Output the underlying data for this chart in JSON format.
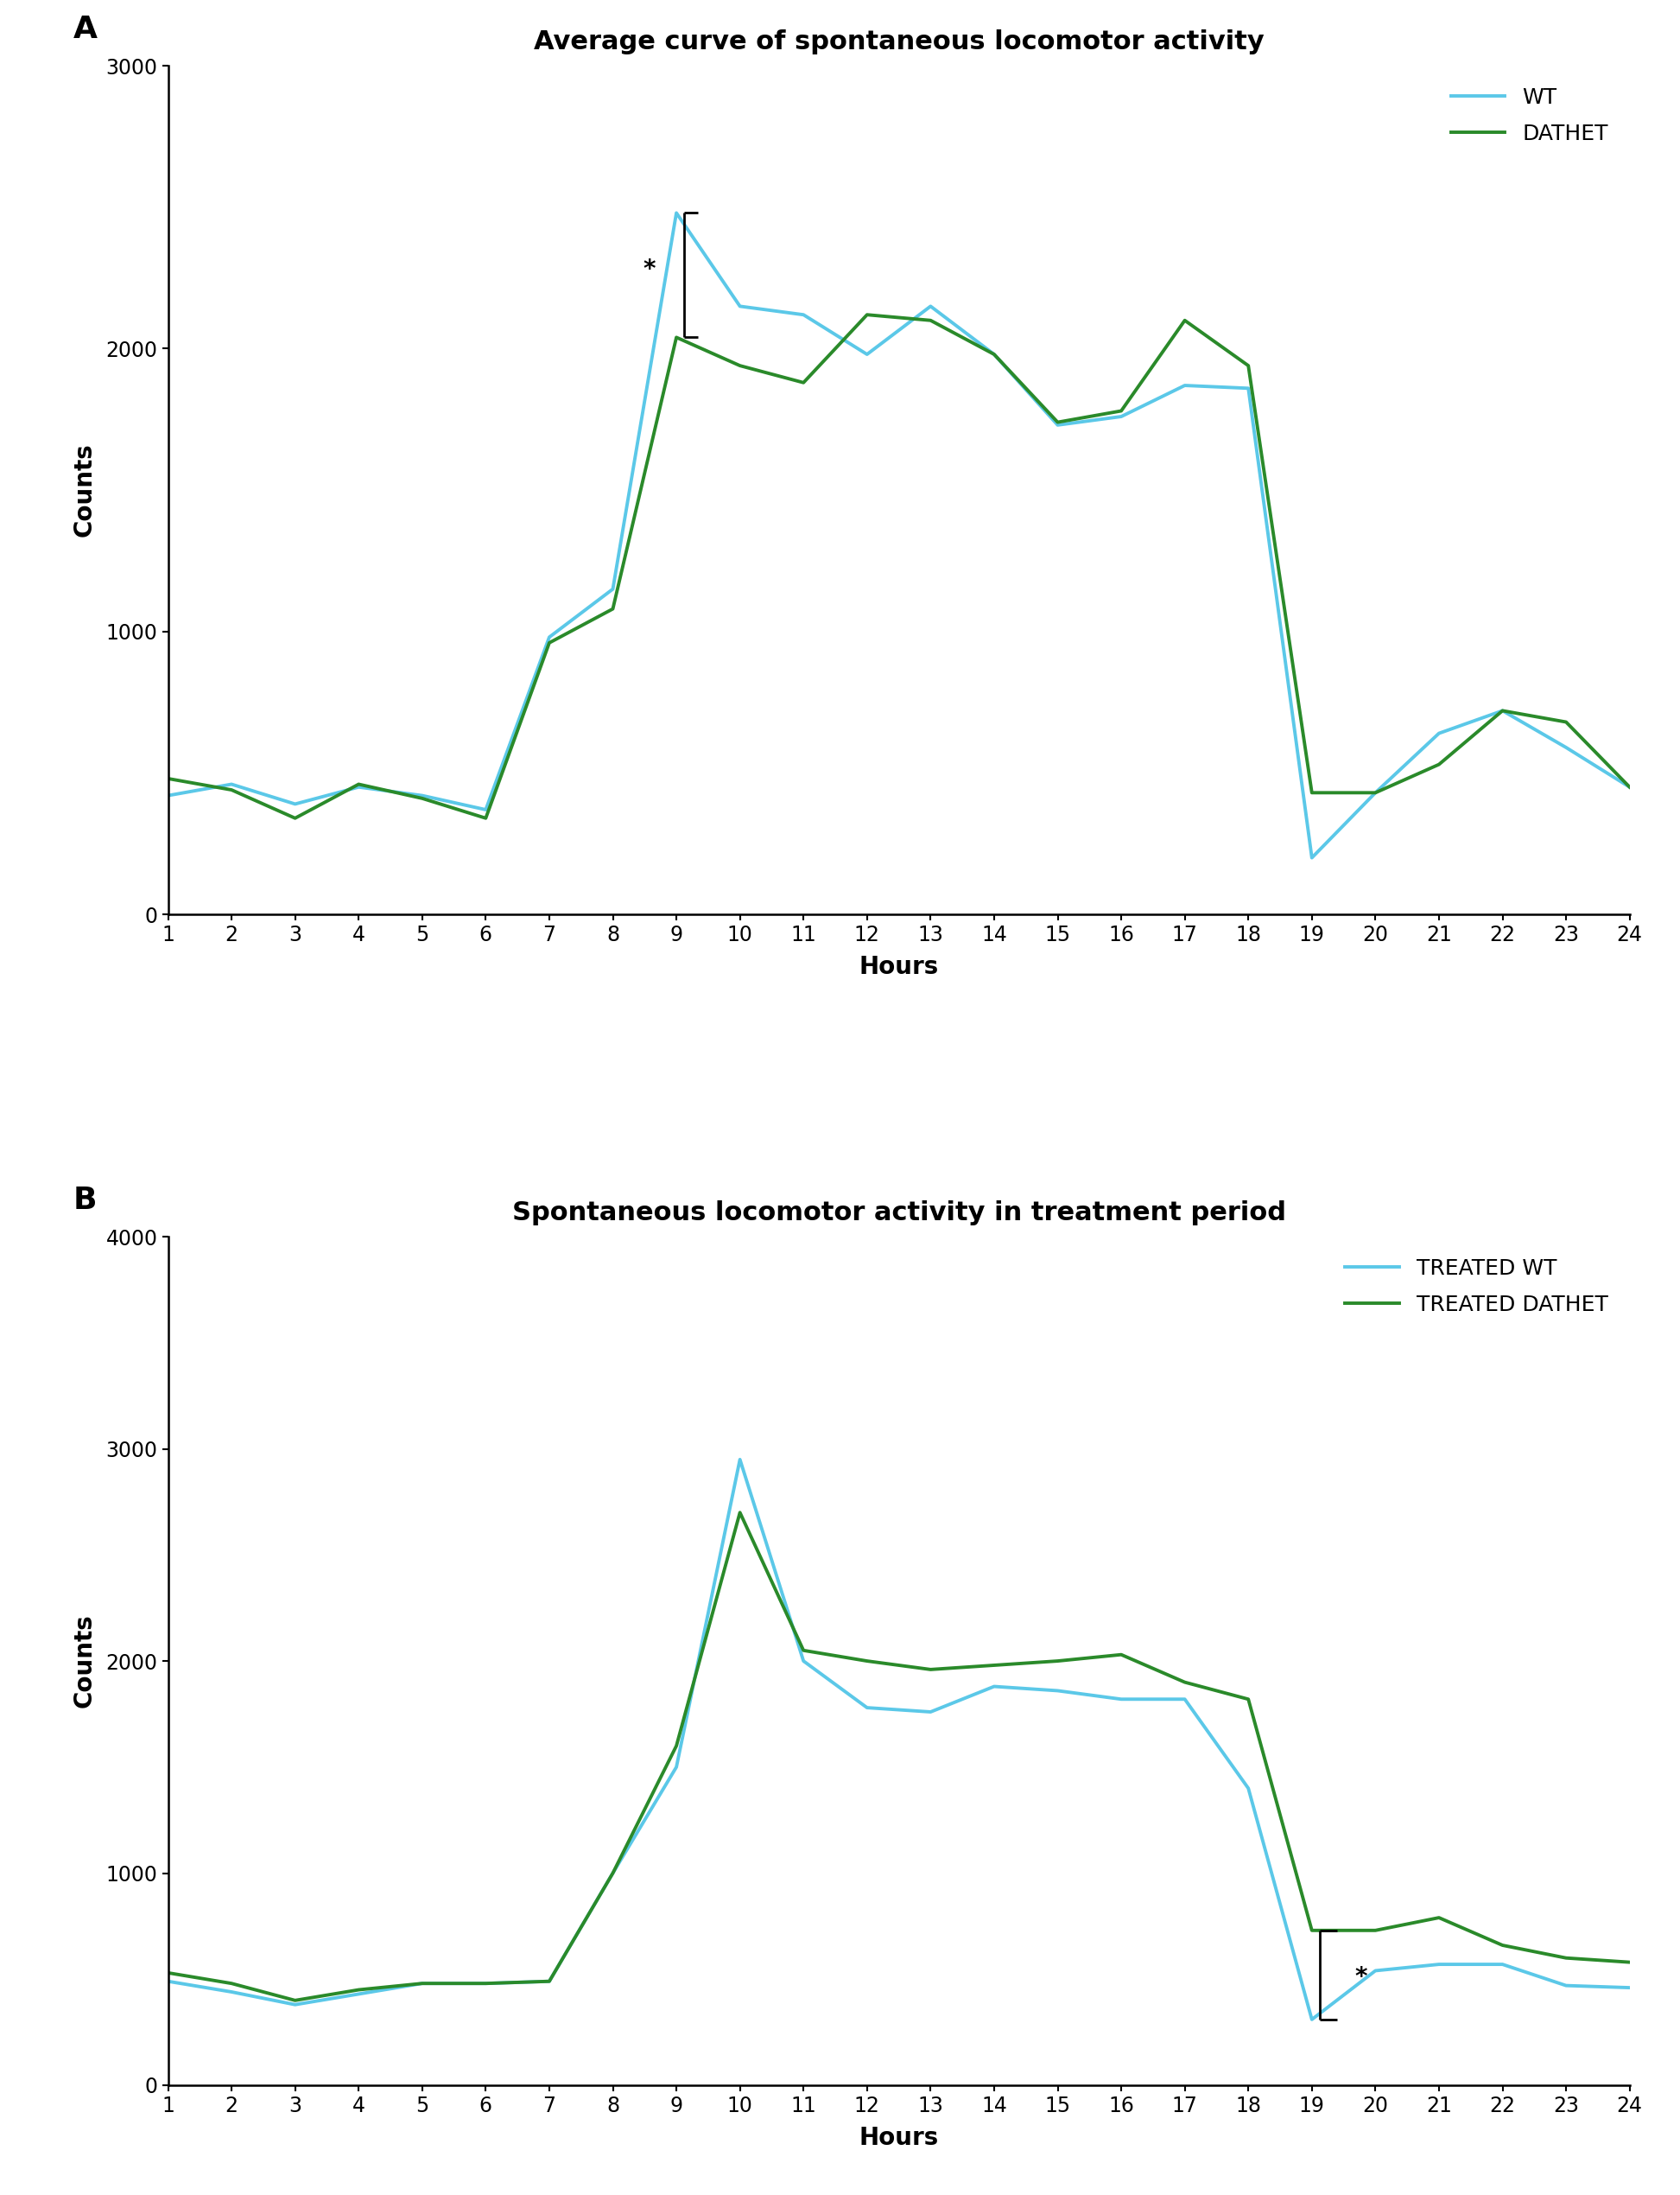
{
  "title_A": "Average curve of spontaneous locomotor activity",
  "title_B": "Spontaneous locomotor activity in treatment period",
  "xlabel": "Hours",
  "ylabel": "Counts",
  "hours": [
    1,
    2,
    3,
    4,
    5,
    6,
    7,
    8,
    9,
    10,
    11,
    12,
    13,
    14,
    15,
    16,
    17,
    18,
    19,
    20,
    21,
    22,
    23,
    24
  ],
  "wt_A": [
    420,
    460,
    390,
    450,
    420,
    370,
    980,
    1150,
    2480,
    2150,
    2120,
    1980,
    2150,
    1980,
    1730,
    1760,
    1870,
    1860,
    200,
    430,
    640,
    720,
    590,
    450
  ],
  "dathet_A": [
    480,
    440,
    340,
    460,
    410,
    340,
    960,
    1080,
    2040,
    1940,
    1880,
    2120,
    2100,
    1980,
    1740,
    1780,
    2100,
    1940,
    430,
    430,
    530,
    720,
    680,
    450
  ],
  "wt_B": [
    490,
    440,
    380,
    430,
    480,
    480,
    490,
    1000,
    1500,
    2950,
    2000,
    1780,
    1760,
    1880,
    1860,
    1820,
    1820,
    1400,
    310,
    540,
    570,
    570,
    470,
    460
  ],
  "dathet_B": [
    530,
    480,
    400,
    450,
    480,
    480,
    490,
    1000,
    1600,
    2700,
    2050,
    2000,
    1960,
    1980,
    2000,
    2030,
    1900,
    1820,
    730,
    730,
    790,
    660,
    600,
    580
  ],
  "color_wt": "#5bc8e8",
  "color_dathet": "#2a8a2a",
  "ylim_A": [
    0,
    3000
  ],
  "ylim_B": [
    0,
    4000
  ],
  "yticks_A": [
    0,
    1000,
    2000,
    3000
  ],
  "yticks_B": [
    0,
    1000,
    2000,
    3000,
    4000
  ],
  "background_color": "#ffffff",
  "linewidth": 2.8,
  "label_fontsize": 20,
  "title_fontsize": 22,
  "tick_fontsize": 17,
  "legend_fontsize": 18,
  "panel_label_fontsize": 26
}
